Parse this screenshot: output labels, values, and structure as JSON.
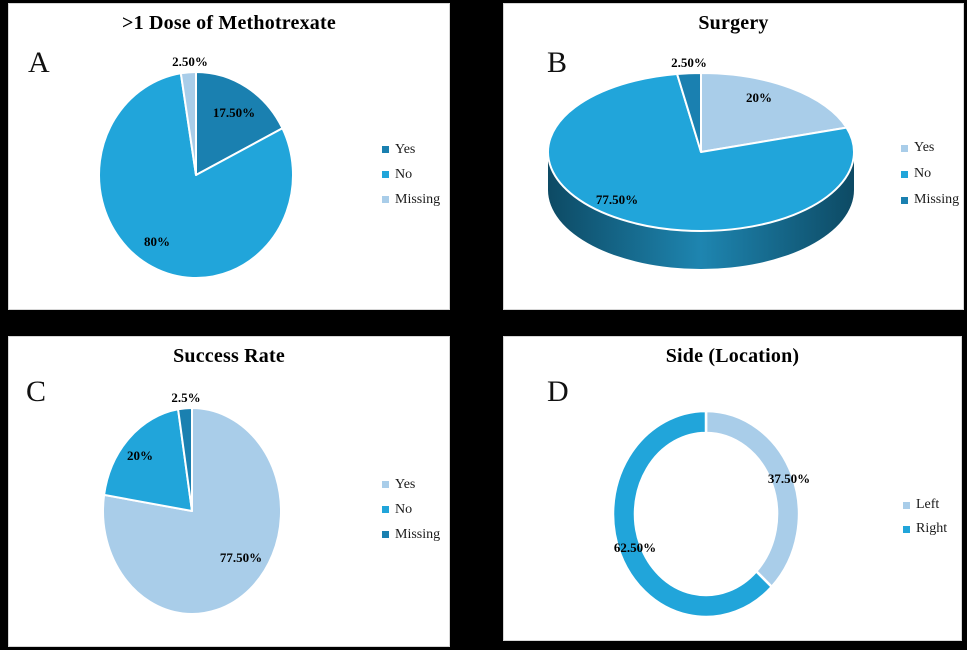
{
  "canvas": {
    "background": "#000000",
    "panel_background": "#ffffff"
  },
  "palette": {
    "dark_blue": "#1A80B0",
    "medium_blue": "#21A5DA",
    "light_blue": "#A9CDE9",
    "pie3d_side_edge": "#0D4A64",
    "pie3d_side_front": "#1E85B0"
  },
  "chart_data": [
    {
      "panel_letter": "A",
      "type": "pie",
      "title": ">1 Dose of Methotrexate",
      "categories": [
        "Yes",
        "No",
        "Missing"
      ],
      "values": [
        17.5,
        80,
        2.5
      ],
      "colors": [
        "#1A80B0",
        "#21A5DA",
        "#A9CDE9"
      ],
      "point_labels": [
        "17.50%",
        "80%",
        "2.50%"
      ],
      "start_angle": 0,
      "direction": "clockwise",
      "legend_position": "right"
    },
    {
      "panel_letter": "B",
      "type": "pie3d",
      "title": "Surgery",
      "categories": [
        "Yes",
        "No",
        "Missing"
      ],
      "values": [
        20,
        77.5,
        2.5
      ],
      "colors": [
        "#A9CDE9",
        "#21A5DA",
        "#1A80B0"
      ],
      "side_gradient": [
        "#0D4A64",
        "#1E85B0",
        "#0D4A64"
      ],
      "point_labels": [
        "20%",
        "77.50%",
        "2.50%"
      ],
      "start_angle": 0,
      "direction": "clockwise",
      "legend_position": "right"
    },
    {
      "panel_letter": "C",
      "type": "pie",
      "title": "Success Rate",
      "categories": [
        "Yes",
        "No",
        "Missing"
      ],
      "values": [
        77.5,
        20,
        2.5
      ],
      "colors": [
        "#A9CDE9",
        "#21A5DA",
        "#1A80B0"
      ],
      "point_labels": [
        "77.50%",
        "20%",
        "2.5%"
      ],
      "start_angle": 0,
      "direction": "clockwise",
      "legend_position": "right"
    },
    {
      "panel_letter": "D",
      "type": "donut",
      "title": "Side (Location)",
      "categories": [
        "Left",
        "Right"
      ],
      "values": [
        37.5,
        62.5
      ],
      "colors": [
        "#A9CDE9",
        "#21A5DA"
      ],
      "point_labels": [
        "37.50%",
        "62.50%"
      ],
      "start_angle": 0,
      "direction": "clockwise",
      "legend_position": "right"
    }
  ]
}
